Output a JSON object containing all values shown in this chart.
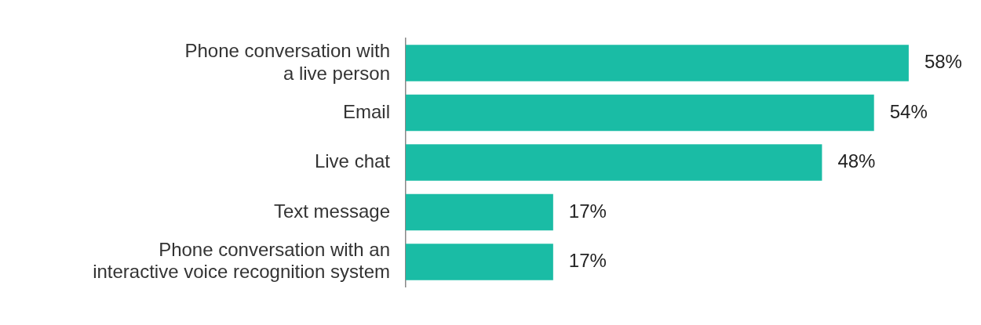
{
  "chart_data": {
    "type": "bar",
    "orientation": "horizontal",
    "categories": [
      "Phone conversation with\na live person",
      "Email",
      "Live chat",
      "Text message",
      "Phone conversation with an\ninteractive voice recognition system"
    ],
    "values": [
      58,
      54,
      48,
      17,
      17
    ],
    "value_labels": [
      "58%",
      "54%",
      "48%",
      "17%",
      "17%"
    ],
    "color": "#1abca5",
    "legend": false
  }
}
